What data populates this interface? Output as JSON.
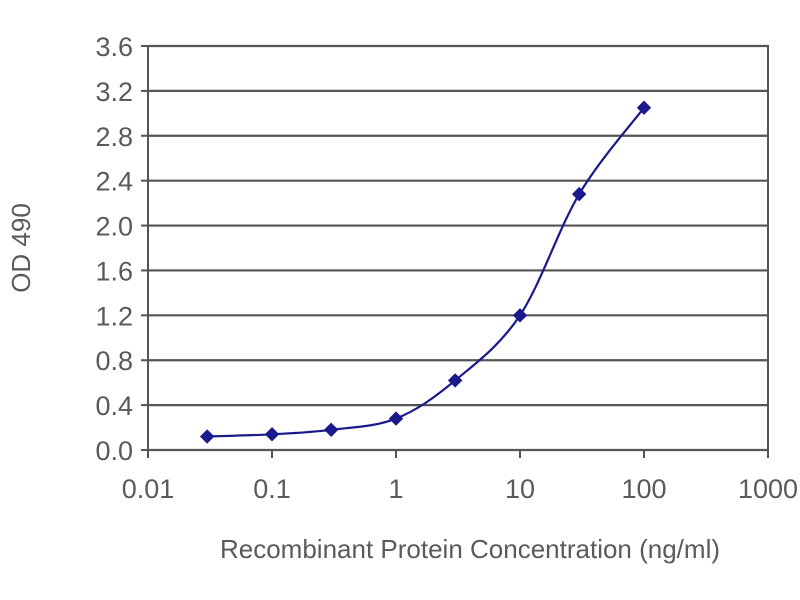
{
  "chart_data": {
    "type": "line",
    "title": "",
    "xlabel": "Recombinant Protein Concentration (ng/ml)",
    "ylabel": "OD 490",
    "x_scale": "log",
    "xlim": [
      0.01,
      1000
    ],
    "ylim": [
      0.0,
      3.6
    ],
    "x_ticks": [
      0.01,
      0.1,
      1,
      10,
      100,
      1000
    ],
    "x_tick_labels": [
      "0.01",
      "0.1",
      "1",
      "10",
      "100",
      "1000"
    ],
    "y_ticks": [
      0.0,
      0.4,
      0.8,
      1.2,
      1.6,
      2.0,
      2.4,
      2.8,
      3.2,
      3.6
    ],
    "y_tick_labels": [
      "0.0",
      "0.4",
      "0.8",
      "1.2",
      "1.6",
      "2.0",
      "2.4",
      "2.8",
      "3.2",
      "3.6"
    ],
    "grid": "horizontal",
    "legend": "none",
    "series": [
      {
        "color": "#1a1a8c",
        "marker": "diamond",
        "x": [
          0.03,
          0.1,
          0.3,
          1,
          3,
          10,
          30,
          100
        ],
        "y": [
          0.12,
          0.14,
          0.18,
          0.28,
          0.62,
          1.2,
          2.28,
          3.05
        ]
      }
    ]
  },
  "colors": {
    "plot_background": "#ffffff",
    "gridline": "#555555",
    "series": "#1a1a8c",
    "text": "#5a5a5a"
  }
}
